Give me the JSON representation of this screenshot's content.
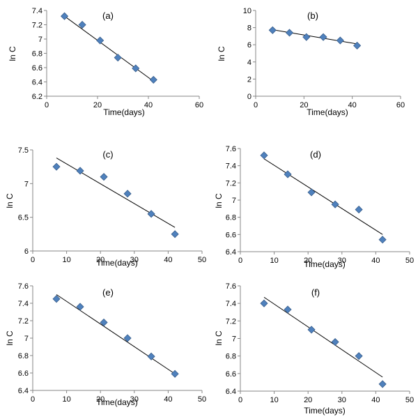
{
  "colors": {
    "marker": "#4f81bd",
    "marker_stroke": "#385d8a",
    "trendline": "#000000",
    "axis": "#868686"
  },
  "chart_data": [
    {
      "type": "scatter",
      "title": "(a)",
      "xlabel": "Time(days)",
      "ylabel": "ln C",
      "xlim": [
        0,
        60
      ],
      "ylim": [
        6.2,
        7.4
      ],
      "xticks": [
        "0",
        "20",
        "40",
        "60"
      ],
      "yticks": [
        "6.2",
        "6.4",
        "6.6",
        "6.8",
        "7",
        "7.2",
        "7.4"
      ],
      "grid": false,
      "series": [
        {
          "x": [
            7,
            14,
            21,
            28,
            35,
            42
          ],
          "y": [
            7.32,
            7.2,
            6.98,
            6.74,
            6.59,
            6.43
          ]
        }
      ],
      "trendline": {
        "x": [
          7,
          42
        ],
        "y": [
          7.32,
          6.41
        ]
      }
    },
    {
      "type": "scatter",
      "title": "(b)",
      "xlabel": "Time(days)",
      "ylabel": "ln C",
      "xlim": [
        0,
        60
      ],
      "ylim": [
        0,
        10
      ],
      "xticks": [
        "0",
        "20",
        "40",
        "60"
      ],
      "yticks": [
        "0",
        "2",
        "4",
        "6",
        "8",
        "10"
      ],
      "grid": false,
      "series": [
        {
          "x": [
            7,
            14,
            21,
            28,
            35,
            42
          ],
          "y": [
            7.7,
            7.4,
            6.9,
            6.9,
            6.5,
            5.9
          ]
        }
      ],
      "trendline": {
        "x": [
          7,
          42
        ],
        "y": [
          7.75,
          6.1
        ]
      }
    },
    {
      "type": "scatter",
      "title": "(c)",
      "xlabel": "Time(days)",
      "ylabel": "ln C",
      "xlim": [
        0,
        50
      ],
      "ylim": [
        6,
        7.5
      ],
      "xticks": [
        "0",
        "10",
        "20",
        "30",
        "40",
        "50"
      ],
      "yticks": [
        "6",
        "6.5",
        "7",
        "7.5"
      ],
      "grid": false,
      "series": [
        {
          "x": [
            7,
            14,
            21,
            28,
            35,
            42
          ],
          "y": [
            7.25,
            7.19,
            7.1,
            6.85,
            6.55,
            6.25
          ]
        }
      ],
      "trendline": {
        "x": [
          7,
          42
        ],
        "y": [
          7.38,
          6.35
        ]
      }
    },
    {
      "type": "scatter",
      "title": "(d)",
      "xlabel": "Time(days)",
      "ylabel": "ln C",
      "xlim": [
        0,
        50
      ],
      "ylim": [
        6.4,
        7.6
      ],
      "xticks": [
        "0",
        "10",
        "20",
        "30",
        "40",
        "50"
      ],
      "yticks": [
        "6.4",
        "6.6",
        "6.8",
        "7",
        "7.2",
        "7.4",
        "7.6"
      ],
      "grid": false,
      "series": [
        {
          "x": [
            7,
            14,
            21,
            28,
            35,
            42
          ],
          "y": [
            7.52,
            7.3,
            7.09,
            6.95,
            6.89,
            6.54
          ]
        }
      ],
      "trendline": {
        "x": [
          7,
          42
        ],
        "y": [
          7.48,
          6.6
        ]
      }
    },
    {
      "type": "scatter",
      "title": "(e)",
      "xlabel": "Time(days)",
      "ylabel": "ln C",
      "xlim": [
        0,
        50
      ],
      "ylim": [
        6.4,
        7.6
      ],
      "xticks": [
        "0",
        "10",
        "20",
        "30",
        "40",
        "50"
      ],
      "yticks": [
        "6.4",
        "6.6",
        "6.8",
        "7",
        "7.2",
        "7.4",
        "7.6"
      ],
      "grid": false,
      "series": [
        {
          "x": [
            7,
            14,
            21,
            28,
            35,
            42
          ],
          "y": [
            7.45,
            7.36,
            7.18,
            7.0,
            6.79,
            6.59
          ]
        }
      ],
      "trendline": {
        "x": [
          7,
          42
        ],
        "y": [
          7.5,
          6.59
        ]
      }
    },
    {
      "type": "scatter",
      "title": "(f)",
      "xlabel": "Time(days)",
      "ylabel": "ln C",
      "xlim": [
        0,
        50
      ],
      "ylim": [
        6.4,
        7.6
      ],
      "xticks": [
        "0",
        "10",
        "20",
        "30",
        "40",
        "50"
      ],
      "yticks": [
        "6.4",
        "6.6",
        "6.8",
        "7",
        "7.2",
        "7.4",
        "7.6"
      ],
      "grid": false,
      "series": [
        {
          "x": [
            7,
            14,
            21,
            28,
            35,
            42
          ],
          "y": [
            7.4,
            7.33,
            7.1,
            6.96,
            6.8,
            6.48
          ]
        }
      ],
      "trendline": {
        "x": [
          7,
          42
        ],
        "y": [
          7.47,
          6.56
        ]
      }
    }
  ]
}
